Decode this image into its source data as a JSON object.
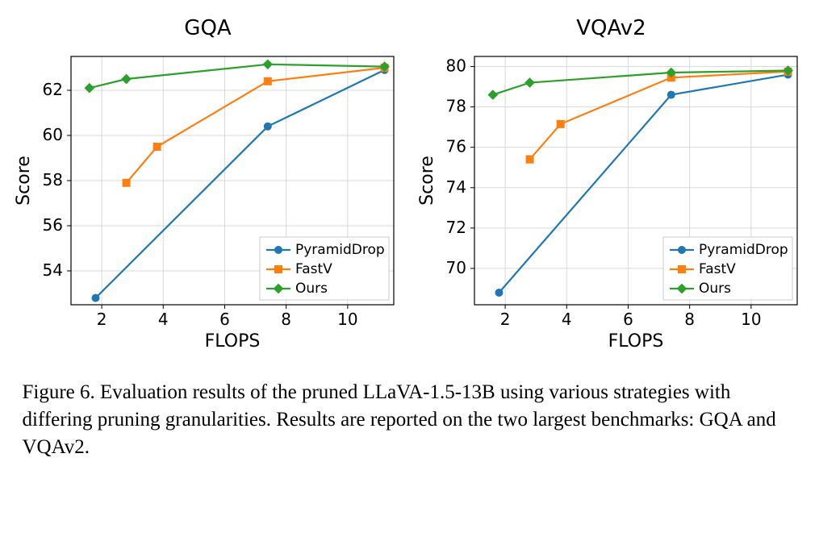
{
  "caption": "Figure 6. Evaluation results of the pruned LLaVA-1.5-13B using various strategies with differing pruning granularities. Results are reported on the two largest benchmarks: GQA and VQAv2.",
  "colors": {
    "pyramiddrop": "#1f77b4",
    "fastv": "#ff7f0e",
    "ours": "#2ca02c",
    "grid": "#d9d9d9",
    "border": "#000000",
    "background": "#ffffff"
  },
  "line_width": 2.2,
  "marker_size": 9,
  "legend": {
    "items": [
      {
        "label": "PyramidDrop",
        "color": "#1f77b4",
        "marker": "circle"
      },
      {
        "label": "FastV",
        "color": "#ff7f0e",
        "marker": "square"
      },
      {
        "label": "Ours",
        "color": "#2ca02c",
        "marker": "diamond"
      }
    ]
  },
  "charts": [
    {
      "id": "gqa",
      "title": "GQA",
      "xlabel": "FLOPS",
      "ylabel": "Score",
      "xlim": [
        1,
        11.5
      ],
      "ylim": [
        52.5,
        63.5
      ],
      "xticks": [
        2,
        4,
        6,
        8,
        10
      ],
      "yticks": [
        54,
        56,
        58,
        60,
        62
      ],
      "series": [
        {
          "name": "PyramidDrop",
          "color": "#1f77b4",
          "marker": "circle",
          "x": [
            1.8,
            7.4,
            11.2
          ],
          "y": [
            52.8,
            60.4,
            62.9
          ]
        },
        {
          "name": "FastV",
          "color": "#ff7f0e",
          "marker": "square",
          "x": [
            2.8,
            3.8,
            7.4,
            11.2
          ],
          "y": [
            57.9,
            59.5,
            62.4,
            63.0
          ]
        },
        {
          "name": "Ours",
          "color": "#2ca02c",
          "marker": "diamond",
          "x": [
            1.6,
            2.8,
            7.4,
            11.2
          ],
          "y": [
            62.1,
            62.5,
            63.15,
            63.05
          ]
        }
      ],
      "legend_pos": "lower-right"
    },
    {
      "id": "vqav2",
      "title": "VQAv2",
      "xlabel": "FLOPS",
      "ylabel": "Score",
      "xlim": [
        1,
        11.5
      ],
      "ylim": [
        68.2,
        80.5
      ],
      "xticks": [
        2,
        4,
        6,
        8,
        10
      ],
      "yticks": [
        70,
        72,
        74,
        76,
        78,
        80
      ],
      "series": [
        {
          "name": "PyramidDrop",
          "color": "#1f77b4",
          "marker": "circle",
          "x": [
            1.8,
            7.4,
            11.2
          ],
          "y": [
            68.8,
            78.6,
            79.6
          ]
        },
        {
          "name": "FastV",
          "color": "#ff7f0e",
          "marker": "square",
          "x": [
            2.8,
            3.8,
            7.4,
            11.2
          ],
          "y": [
            75.4,
            77.15,
            79.45,
            79.75
          ]
        },
        {
          "name": "Ours",
          "color": "#2ca02c",
          "marker": "diamond",
          "x": [
            1.6,
            2.8,
            7.4,
            11.2
          ],
          "y": [
            78.6,
            79.2,
            79.7,
            79.8
          ]
        }
      ],
      "legend_pos": "lower-right"
    }
  ]
}
